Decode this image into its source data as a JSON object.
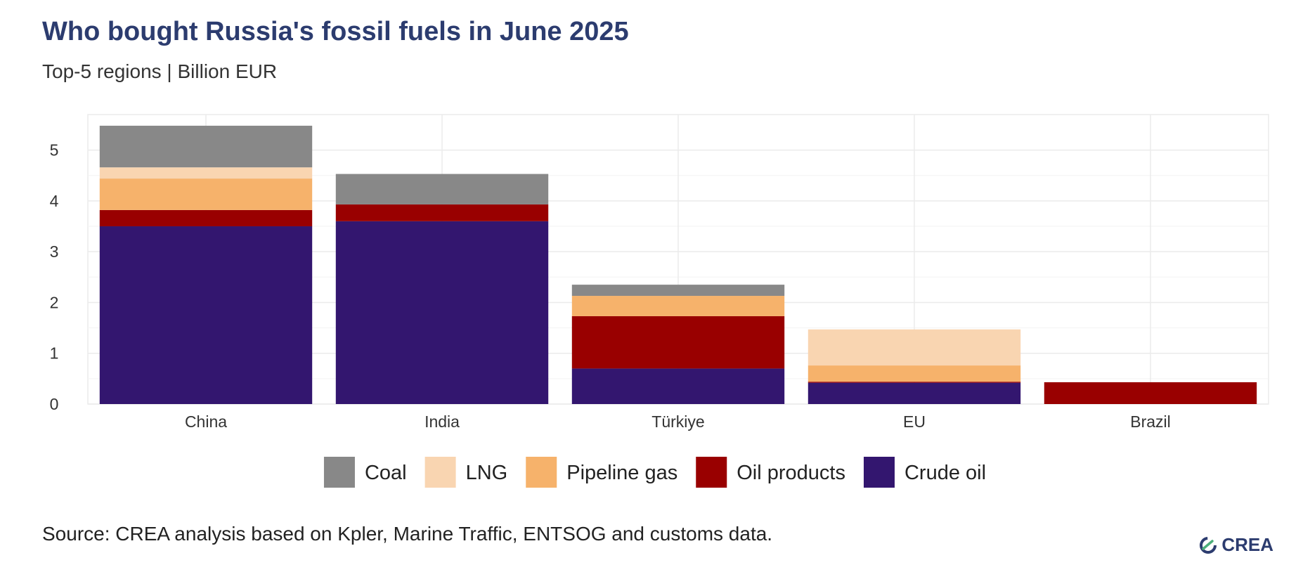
{
  "chart_data": {
    "type": "bar",
    "stacked": true,
    "title": "Who bought Russia's fossil fuels in June 2025",
    "subtitle": "Top-5 regions | Billion EUR",
    "categories": [
      "China",
      "India",
      "Türkiye",
      "EU",
      "Brazil"
    ],
    "series": [
      {
        "name": "Crude oil",
        "color": "#33166f",
        "values": [
          3.5,
          3.6,
          0.7,
          0.42,
          0
        ]
      },
      {
        "name": "Oil products",
        "color": "#990000",
        "values": [
          0.32,
          0.33,
          1.03,
          0.02,
          0.43
        ]
      },
      {
        "name": "Pipeline gas",
        "color": "#f6b26b",
        "values": [
          0.62,
          0,
          0.4,
          0.32,
          0
        ]
      },
      {
        "name": "LNG",
        "color": "#f9d5b1",
        "values": [
          0.22,
          0,
          0,
          0.71,
          0
        ]
      },
      {
        "name": "Coal",
        "color": "#888888",
        "values": [
          0.82,
          0.6,
          0.22,
          0,
          0
        ]
      }
    ],
    "legend_order": [
      "Coal",
      "LNG",
      "Pipeline gas",
      "Oil products",
      "Crude oil"
    ],
    "yticks": [
      0,
      1,
      2,
      3,
      4,
      5
    ],
    "ylim": [
      0,
      5.7
    ],
    "xlabel": "",
    "ylabel": "",
    "grid": true,
    "legend_position": "bottom"
  },
  "source": "Source: CREA analysis based on Kpler, Marine Traffic, ENTSOG and customs data.",
  "brand": {
    "name": "CREA",
    "icon": "crea-logo-icon",
    "color": "#2c3c6f"
  }
}
